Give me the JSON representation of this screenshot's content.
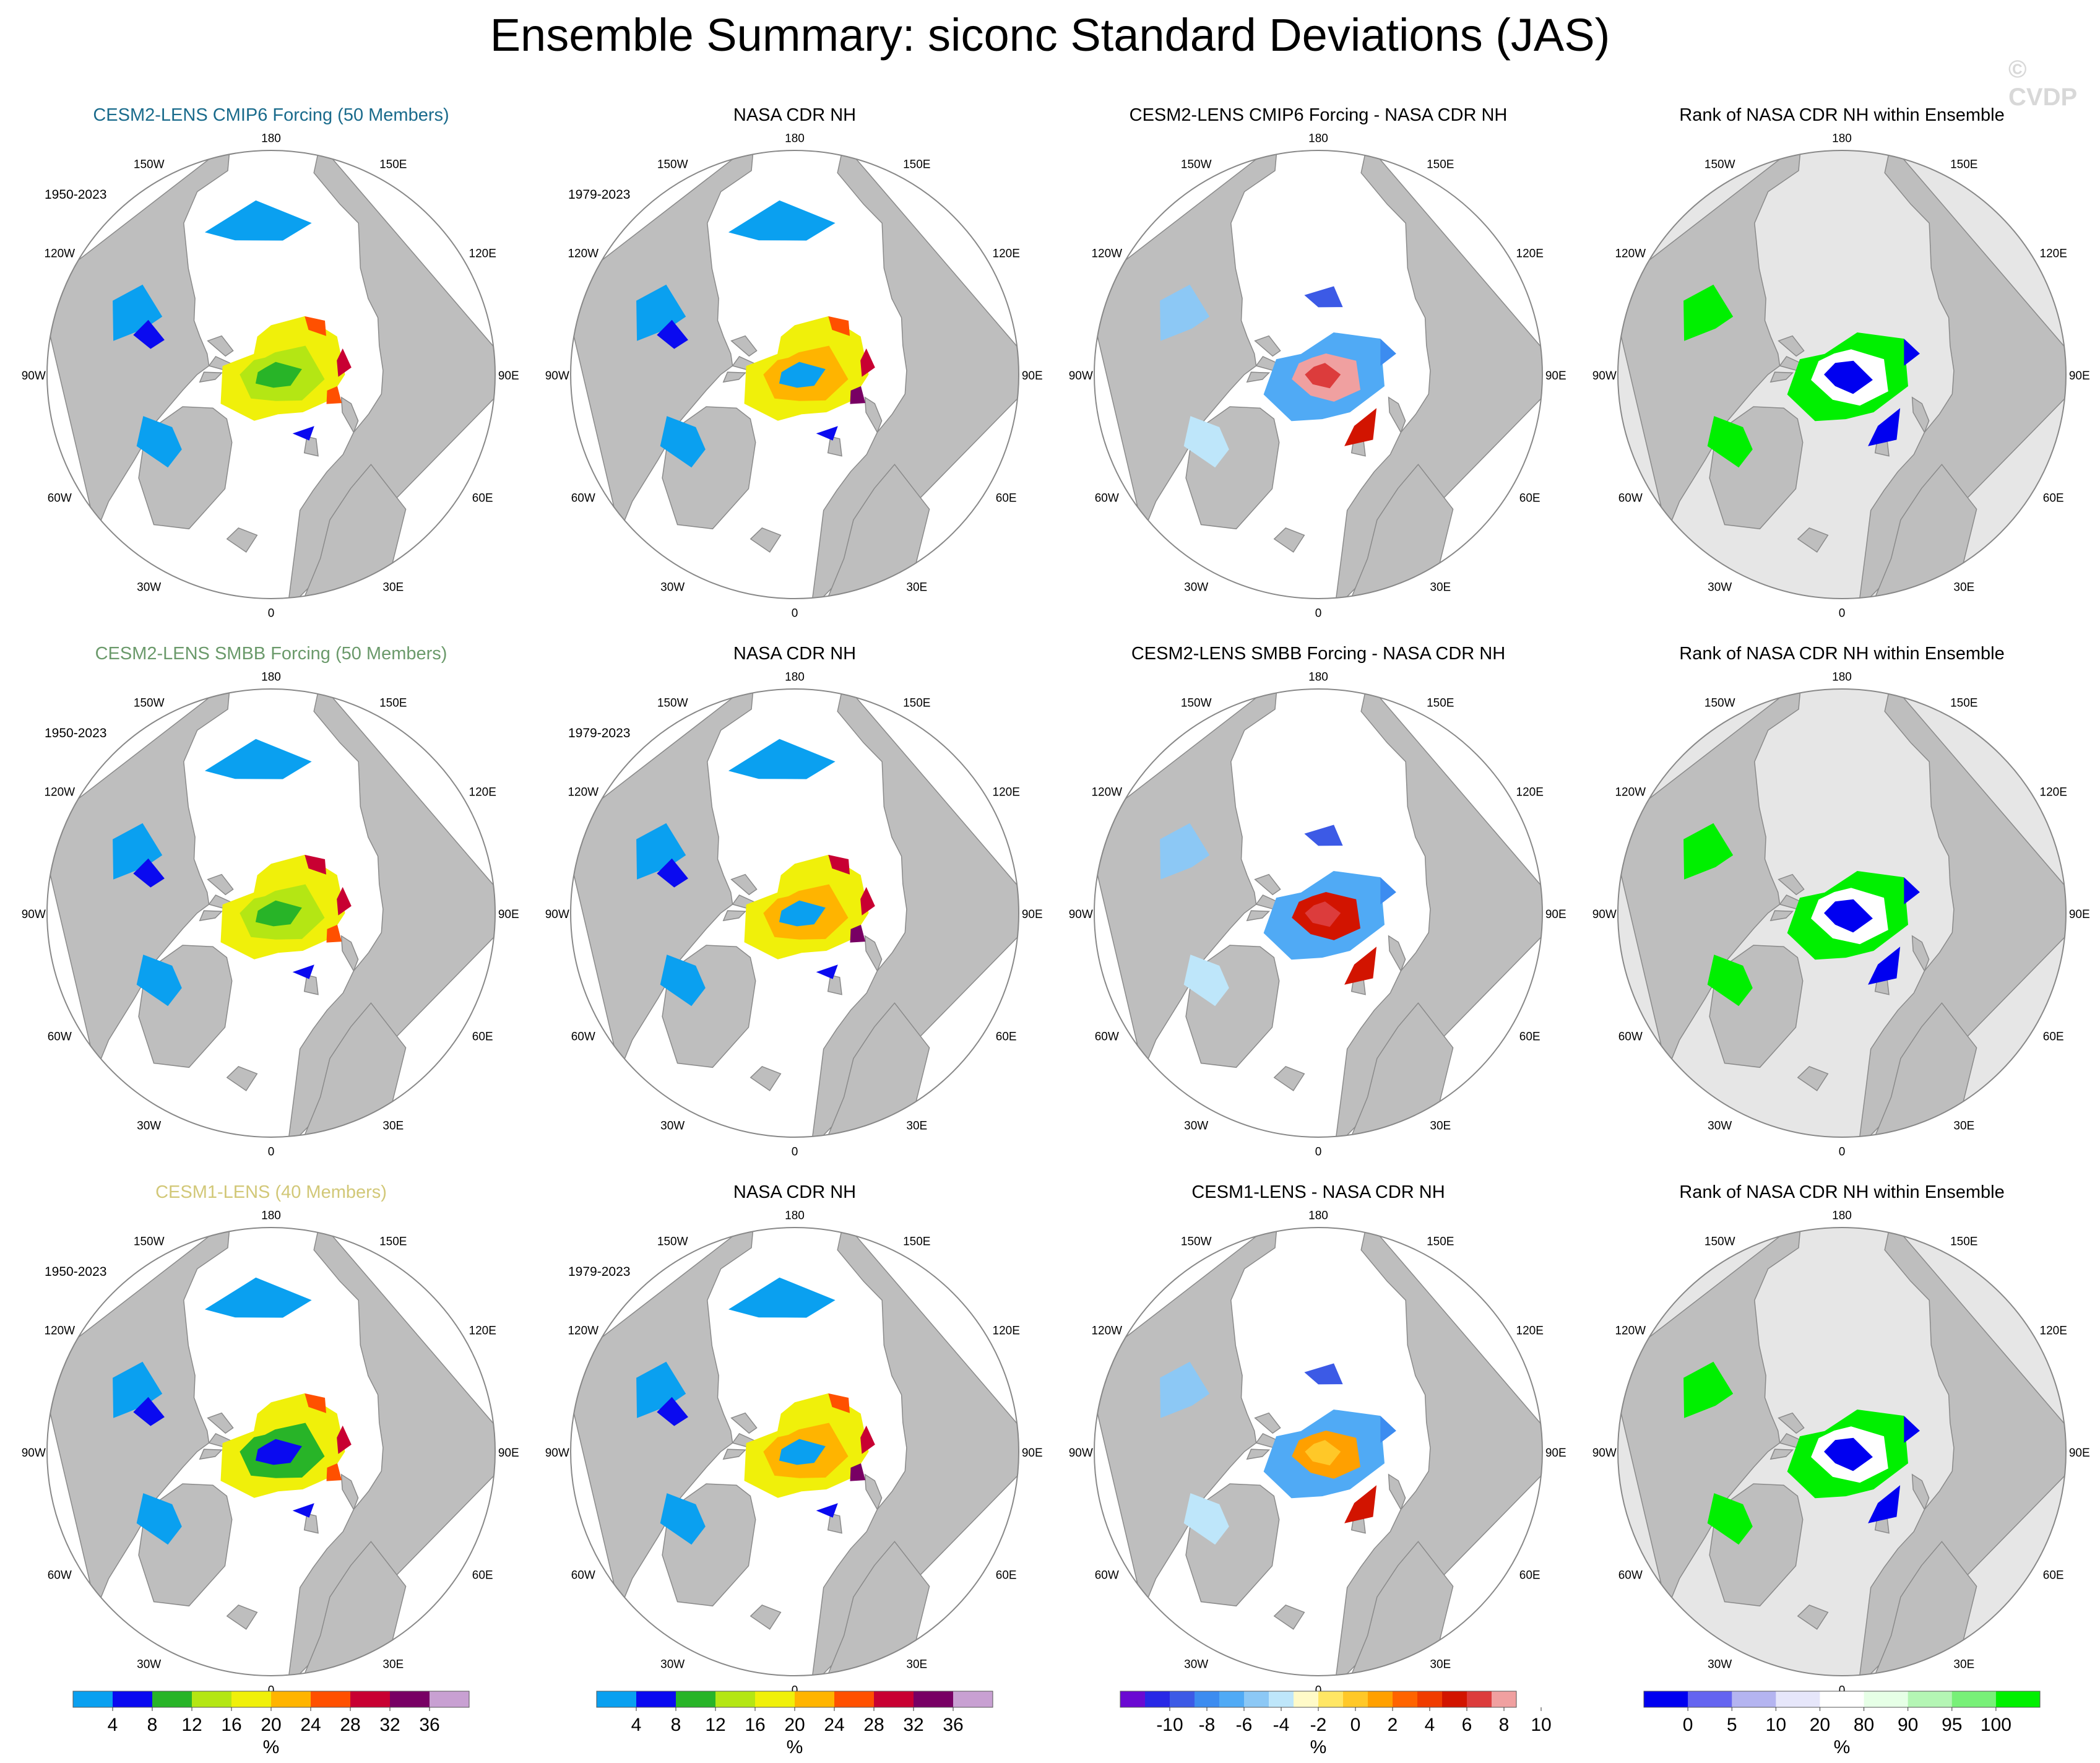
{
  "title": "Ensemble Summary: siconc Standard Deviations (JAS)",
  "watermark": "© CVDP",
  "colors": {
    "land": "#bebebe",
    "rank_land": "#e6e6e6",
    "std_palette": [
      "#0aa0f0",
      "#0a0af0",
      "#28b428",
      "#b4e614",
      "#f0f00a",
      "#ffb400",
      "#ff5000",
      "#c80032",
      "#780064",
      "#c8a0d2"
    ],
    "diff_palette": [
      "#6a0ad2",
      "#2828e6",
      "#3c5ae6",
      "#3c8cf0",
      "#50aaf5",
      "#8cc8f5",
      "#bee6fa",
      "#fffac8",
      "#ffe664",
      "#ffc828",
      "#ffa000",
      "#ff6400",
      "#f03c00",
      "#d21400",
      "#dc3c3c",
      "#f0a0a0"
    ],
    "rank_palette": [
      "#0000f0",
      "#6464f0",
      "#b4b4f0",
      "#e6e6fa",
      "#ffffff",
      "#e6ffe6",
      "#b4f5b4",
      "#78f078",
      "#00f000"
    ]
  },
  "lon_labels": [
    "180",
    "150E",
    "120E",
    "90E",
    "60E",
    "30E",
    "0",
    "30W",
    "60W",
    "90W",
    "120W",
    "150W"
  ],
  "rows": [
    {
      "panels": [
        {
          "title": "CESM2-LENS CMIP6 Forcing (50 Members)",
          "title_color": "#1a6b8c",
          "period": "1950-2023",
          "kind": "std",
          "variant": 0
        },
        {
          "title": "NASA CDR NH",
          "title_color": "#000000",
          "period": "1979-2023",
          "kind": "obs",
          "variant": 0
        },
        {
          "title": "CESM2-LENS CMIP6 Forcing - NASA CDR NH",
          "title_color": "#000000",
          "period": "",
          "kind": "diff",
          "variant": 0
        },
        {
          "title": "Rank of NASA CDR NH within Ensemble",
          "title_color": "#000000",
          "period": "",
          "kind": "rank",
          "variant": 0
        }
      ]
    },
    {
      "panels": [
        {
          "title": "CESM2-LENS SMBB Forcing (50 Members)",
          "title_color": "#6b9a6b",
          "period": "1950-2023",
          "kind": "std",
          "variant": 1
        },
        {
          "title": "NASA CDR NH",
          "title_color": "#000000",
          "period": "1979-2023",
          "kind": "obs",
          "variant": 1
        },
        {
          "title": "CESM2-LENS SMBB Forcing - NASA CDR NH",
          "title_color": "#000000",
          "period": "",
          "kind": "diff",
          "variant": 1
        },
        {
          "title": "Rank of NASA CDR NH within Ensemble",
          "title_color": "#000000",
          "period": "",
          "kind": "rank",
          "variant": 1
        }
      ]
    },
    {
      "panels": [
        {
          "title": "CESM1-LENS (40 Members)",
          "title_color": "#d2c878",
          "period": "1950-2023",
          "kind": "std",
          "variant": 2
        },
        {
          "title": "NASA CDR NH",
          "title_color": "#000000",
          "period": "1979-2023",
          "kind": "obs",
          "variant": 2
        },
        {
          "title": "CESM1-LENS - NASA CDR NH",
          "title_color": "#000000",
          "period": "",
          "kind": "diff",
          "variant": 2
        },
        {
          "title": "Rank of NASA CDR NH within Ensemble",
          "title_color": "#000000",
          "period": "",
          "kind": "rank",
          "variant": 2
        }
      ]
    }
  ],
  "colorbars": [
    {
      "kind": "std",
      "ticks": [
        "4",
        "8",
        "12",
        "16",
        "20",
        "24",
        "28",
        "32",
        "36"
      ],
      "unit": "%"
    },
    {
      "kind": "std",
      "ticks": [
        "4",
        "8",
        "12",
        "16",
        "20",
        "24",
        "28",
        "32",
        "36"
      ],
      "unit": "%"
    },
    {
      "kind": "diff",
      "ticks": [
        "-10",
        "-8",
        "-6",
        "-4",
        "-2",
        "0",
        "2",
        "4",
        "6",
        "8",
        "10"
      ],
      "unit": "%"
    },
    {
      "kind": "rank",
      "ticks": [
        "0",
        "5",
        "10",
        "20",
        "80",
        "90",
        "95",
        "100"
      ],
      "unit": "%"
    }
  ],
  "chart_data": {
    "type": "heatmap",
    "title": "Ensemble Summary: siconc Standard Deviations (JAS)",
    "variable": "siconc",
    "season": "JAS",
    "projection": "north polar stereographic",
    "longitude_labels": [
      "180",
      "150E",
      "120E",
      "90E",
      "60E",
      "30E",
      "0",
      "30W",
      "60W",
      "90W",
      "120W",
      "150W"
    ],
    "colorbar_units": "%",
    "std_levels": [
      4,
      8,
      12,
      16,
      20,
      24,
      28,
      32,
      36
    ],
    "diff_levels": [
      -10,
      -8,
      -6,
      -4,
      -2,
      0,
      2,
      4,
      6,
      8,
      10
    ],
    "rank_levels": [
      0,
      5,
      10,
      20,
      80,
      90,
      95,
      100
    ]
  }
}
